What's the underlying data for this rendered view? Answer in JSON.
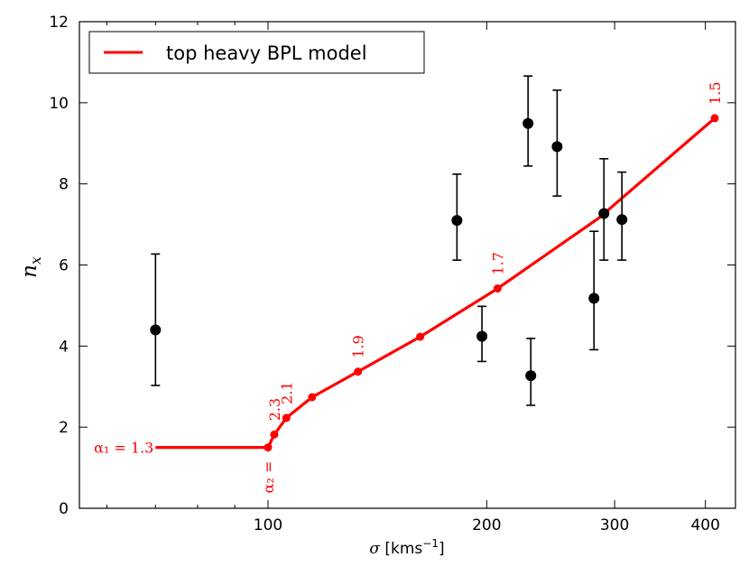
{
  "chart_data": {
    "type": "scatter",
    "title": "",
    "xlabel": "σ [kms⁻¹]",
    "ylabel": "n_x",
    "xscale": "log",
    "xlim": [
      55,
      440
    ],
    "ylim": [
      0,
      12
    ],
    "x_ticks": [
      100,
      200,
      300,
      400
    ],
    "x_tick_labels": [
      "100",
      "200",
      "300",
      "400"
    ],
    "y_ticks": [
      0,
      2,
      4,
      6,
      8,
      10,
      12
    ],
    "y_tick_labels": [
      "0",
      "2",
      "4",
      "6",
      "8",
      "10",
      "12"
    ],
    "legend": {
      "position": "top-left",
      "entries": [
        "top heavy BPL model"
      ]
    },
    "observations": {
      "name": "data",
      "color": "#000000",
      "points": [
        {
          "x": 70,
          "y": 4.4,
          "err_low": 1.37,
          "err_high": 1.87
        },
        {
          "x": 182,
          "y": 7.1,
          "err_low": 0.98,
          "err_high": 1.14
        },
        {
          "x": 197,
          "y": 4.24,
          "err_low": 0.62,
          "err_high": 0.74
        },
        {
          "x": 228,
          "y": 9.49,
          "err_low": 1.05,
          "err_high": 1.17
        },
        {
          "x": 230,
          "y": 3.27,
          "err_low": 0.73,
          "err_high": 0.92
        },
        {
          "x": 250,
          "y": 8.92,
          "err_low": 1.22,
          "err_high": 1.39
        },
        {
          "x": 281,
          "y": 5.18,
          "err_low": 1.27,
          "err_high": 1.65
        },
        {
          "x": 290,
          "y": 7.27,
          "err_low": 1.15,
          "err_high": 1.35
        },
        {
          "x": 307,
          "y": 7.12,
          "err_low": 1.0,
          "err_high": 1.17
        }
      ]
    },
    "model": {
      "name": "top heavy BPL model",
      "color": "#ff0000",
      "line": [
        {
          "x": 70,
          "y": 1.5
        },
        {
          "x": 100,
          "y": 1.5
        },
        {
          "x": 102,
          "y": 1.82
        },
        {
          "x": 106,
          "y": 2.23
        },
        {
          "x": 115,
          "y": 2.74
        },
        {
          "x": 133,
          "y": 3.37
        },
        {
          "x": 162,
          "y": 4.23
        },
        {
          "x": 207,
          "y": 5.42
        },
        {
          "x": 285,
          "y": 7.15
        },
        {
          "x": 412,
          "y": 9.62
        }
      ],
      "markers": [
        {
          "x": 100,
          "y": 1.5
        },
        {
          "x": 102,
          "y": 1.82
        },
        {
          "x": 106,
          "y": 2.23
        },
        {
          "x": 115,
          "y": 2.74
        },
        {
          "x": 133,
          "y": 3.37
        },
        {
          "x": 162,
          "y": 4.23
        },
        {
          "x": 207,
          "y": 5.42
        },
        {
          "x": 412,
          "y": 9.62
        }
      ]
    },
    "annotations": [
      {
        "text": "α₁ = 1.3",
        "x": 70,
        "y": 1.5,
        "anchor": "left-of-point",
        "rotate": 0
      },
      {
        "text": "α₂ =",
        "x": 100,
        "y": 1.5,
        "anchor": "below-point",
        "rotate": -90
      },
      {
        "text": "2.3",
        "x": 102,
        "y": 1.82,
        "anchor": "above-point",
        "rotate": -90
      },
      {
        "text": "2.1",
        "x": 106,
        "y": 2.23,
        "anchor": "above-point",
        "rotate": -90
      },
      {
        "text": "1.9",
        "x": 133,
        "y": 3.37,
        "anchor": "above-point",
        "rotate": -90
      },
      {
        "text": "1.7",
        "x": 207,
        "y": 5.42,
        "anchor": "above-point",
        "rotate": -90
      },
      {
        "text": "1.5",
        "x": 412,
        "y": 9.62,
        "anchor": "above-point",
        "rotate": -90
      }
    ]
  }
}
